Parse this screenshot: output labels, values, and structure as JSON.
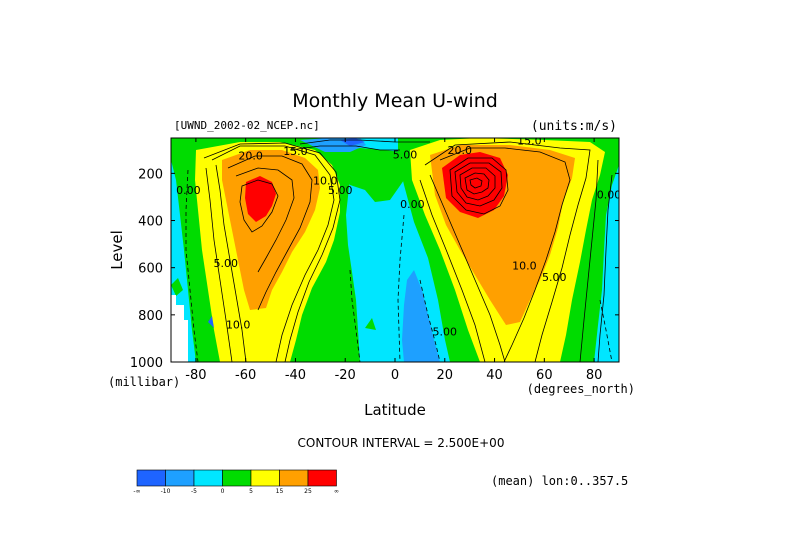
{
  "chart_data": {
    "type": "heatmap",
    "title": "Monthly Mean U-wind",
    "dataset_label": "[UWND_2002-02_NCEP.nc]",
    "units_label": "(units:m/s)",
    "xlabel": "Latitude",
    "x_unit_label": "(degrees_north)",
    "ylabel": "Level",
    "y_unit_label": "(millibar)",
    "xlim": [
      -90,
      90
    ],
    "ylim": [
      1000,
      50
    ],
    "x_ticks": [
      -80,
      -60,
      -40,
      -20,
      0,
      20,
      40,
      60,
      80
    ],
    "x_tick_labels": [
      "-80",
      "-60",
      "-40",
      "-20",
      "0",
      "20",
      "40",
      "60",
      "80"
    ],
    "y_ticks": [
      200,
      400,
      600,
      800,
      1000
    ],
    "y_tick_labels": [
      "200",
      "400",
      "600",
      "800",
      "1000"
    ],
    "contour_interval_text": "CONTOUR INTERVAL = 2.500E+00",
    "mean_note": "(mean) lon:0..357.5",
    "contour_labels": [
      {
        "text": "20.0",
        "lat": -58,
        "lev": 125
      },
      {
        "text": "15.0",
        "lat": -40,
        "lev": 105
      },
      {
        "text": "10.0",
        "lat": -28,
        "lev": 230
      },
      {
        "text": "5.00",
        "lat": -22,
        "lev": 270
      },
      {
        "text": "0.00",
        "lat": -83,
        "lev": 270
      },
      {
        "text": "5.00",
        "lat": -68,
        "lev": 580
      },
      {
        "text": "10.0",
        "lat": -63,
        "lev": 840
      },
      {
        "text": "5.00",
        "lat": 4,
        "lev": 120
      },
      {
        "text": "20.0",
        "lat": 26,
        "lev": 100
      },
      {
        "text": "15.0",
        "lat": 54,
        "lev": 60
      },
      {
        "text": "0.00",
        "lat": 7,
        "lev": 330
      },
      {
        "text": "5.00",
        "lat": 20,
        "lev": 870
      },
      {
        "text": "10.0",
        "lat": 52,
        "lev": 590
      },
      {
        "text": "5.00",
        "lat": 64,
        "lev": 640
      },
      {
        "text": "0.00",
        "lat": 86,
        "lev": 290
      }
    ],
    "colorbar": {
      "labels": [
        "-∞",
        "-10",
        "-5",
        "0",
        "5",
        "15",
        "25",
        "∞"
      ],
      "colors": [
        "#1e64ff",
        "#1ea0ff",
        "#00e6ff",
        "#00dc00",
        "#ffff00",
        "#ffa000",
        "#ff0000"
      ]
    },
    "fill_colors": {
      "neg_strong": "#1e64ff",
      "neg": "#1ea0ff",
      "weak_neg": "#00e6ff",
      "weak_pos": "#00dc00",
      "pos": "#ffff00",
      "strong": "#ffa000",
      "jet": "#ff0000",
      "missing": "#ffffff"
    }
  }
}
